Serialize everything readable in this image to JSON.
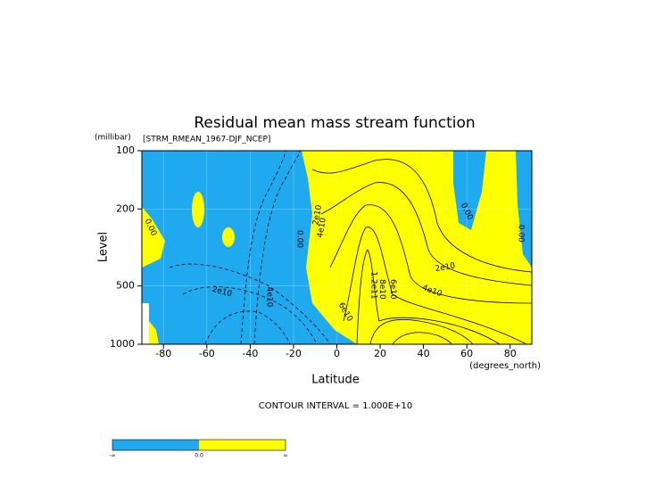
{
  "chart_data": {
    "type": "contour",
    "title": "Residual mean mass stream function",
    "subtitle": "[STRM_RMEAN_1967-DJF_NCEP]",
    "x_label": "Latitude",
    "x_unit": "(degrees_north)",
    "y_label": "Level",
    "y_unit": "(millibar)",
    "note": "CONTOUR INTERVAL = 1.000E+10",
    "xlim": [
      -90,
      90
    ],
    "ylim": [
      1000,
      100
    ],
    "log_y": true,
    "xticks": [
      -80,
      -60,
      -40,
      -20,
      0,
      20,
      40,
      60,
      80
    ],
    "yticks": [
      100,
      200,
      500,
      1000
    ],
    "grid": true,
    "colors": {
      "negative": "#1faaf0",
      "positive": "#ffff00"
    },
    "contour_labels": [
      {
        "text": "0.00",
        "x": -86,
        "y": 249
      },
      {
        "text": "2e10",
        "x": -53,
        "y": 535
      },
      {
        "text": "4e10",
        "x": -31,
        "y": 570
      },
      {
        "text": "0.00",
        "x": -17,
        "y": 286
      },
      {
        "text": "2e10",
        "x": -9,
        "y": 215
      },
      {
        "text": "4e10",
        "x": -7,
        "y": 250
      },
      {
        "text": "6e10",
        "x": 4,
        "y": 682
      },
      {
        "text": "1.2e11",
        "x": 17,
        "y": 496
      },
      {
        "text": "8e10",
        "x": 21,
        "y": 520
      },
      {
        "text": "6e10",
        "x": 26,
        "y": 520
      },
      {
        "text": "4e10",
        "x": 44,
        "y": 530
      },
      {
        "text": "2e10",
        "x": 50,
        "y": 401
      },
      {
        "text": "0.00",
        "x": 60,
        "y": 206
      },
      {
        "text": "0.00",
        "x": 85,
        "y": 268
      }
    ],
    "colorbar": {
      "labels": [
        "-∞",
        "0.0",
        "∞"
      ]
    }
  }
}
